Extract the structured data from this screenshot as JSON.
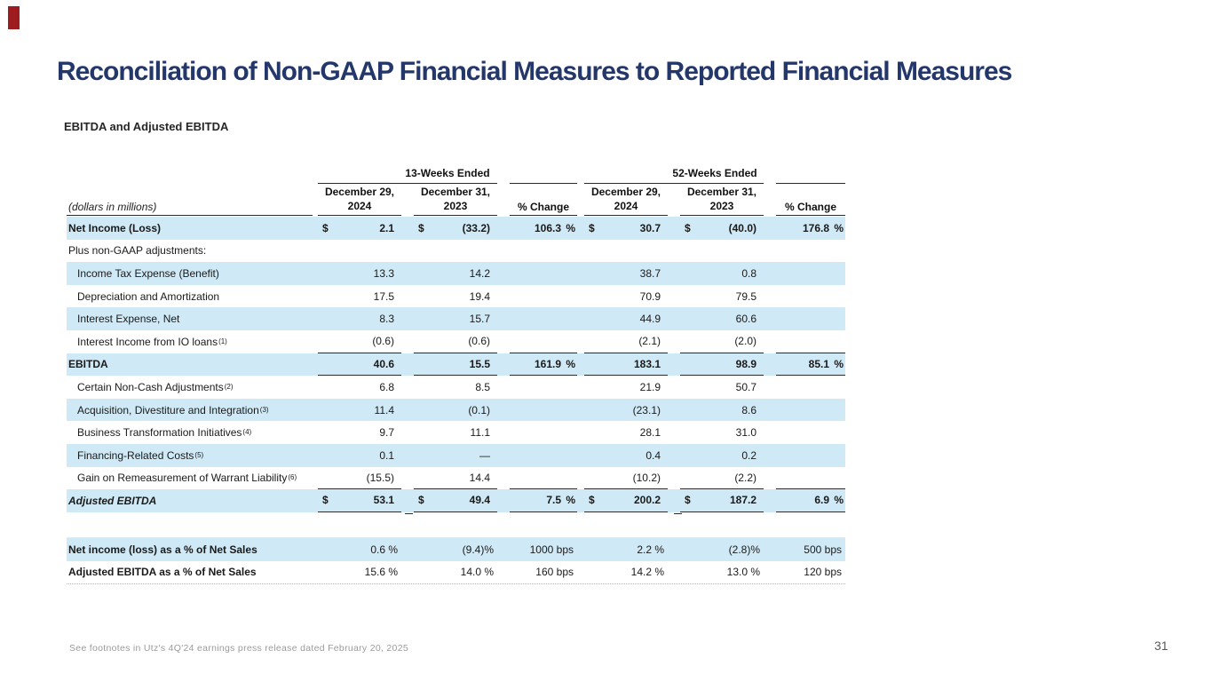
{
  "slide": {
    "title": "Reconciliation of Non-GAAP Financial Measures to Reported Financial Measures",
    "subtitle": "EBITDA and Adjusted EBITDA",
    "footnote": "See footnotes in Utz's 4Q'24 earnings press release dated February 20, 2025",
    "page_number": "31",
    "accent_color": "#9e1b20",
    "title_color": "#24376b",
    "band_color": "#cfe9f6"
  },
  "table": {
    "units_label": "(dollars in millions)",
    "groups": [
      {
        "label": "13-Weeks Ended",
        "cols": [
          {
            "l1": "December 29,",
            "l2": "2024"
          },
          {
            "l1": "December 31,",
            "l2": "2023"
          }
        ],
        "pct_label": "% Change"
      },
      {
        "label": "52-Weeks Ended",
        "cols": [
          {
            "l1": "December 29,",
            "l2": "2024"
          },
          {
            "l1": "December 31,",
            "l2": "2023"
          }
        ],
        "pct_label": "% Change"
      }
    ],
    "rows": [
      {
        "label": "Net Income (Loss)",
        "bold": true,
        "shaded": true,
        "cells": [
          {
            "c": "$",
            "v": "2.1"
          },
          {
            "c": "$",
            "v": "(33.2)"
          },
          {
            "v": "106.3",
            "s": "%"
          },
          {
            "c": "$",
            "v": "30.7"
          },
          {
            "c": "$",
            "v": "(40.0)"
          },
          {
            "v": "176.8",
            "s": "%"
          }
        ]
      },
      {
        "label": "Plus non-GAAP adjustments:",
        "cells": null
      },
      {
        "label": "Income Tax Expense (Benefit)",
        "indent": true,
        "shaded": true,
        "cells": [
          {
            "v": "13.3"
          },
          {
            "v": "14.2"
          },
          null,
          {
            "v": "38.7"
          },
          {
            "v": "0.8"
          },
          null
        ]
      },
      {
        "label": "Depreciation and Amortization",
        "indent": true,
        "cells": [
          {
            "v": "17.5"
          },
          {
            "v": "19.4"
          },
          null,
          {
            "v": "70.9"
          },
          {
            "v": "79.5"
          },
          null
        ]
      },
      {
        "label": "Interest Expense, Net",
        "indent": true,
        "shaded": true,
        "cells": [
          {
            "v": "8.3"
          },
          {
            "v": "15.7"
          },
          null,
          {
            "v": "44.9"
          },
          {
            "v": "60.6"
          },
          null
        ]
      },
      {
        "label": "Interest Income from IO loans",
        "sup": "(1)",
        "indent": true,
        "rule": true,
        "cells": [
          {
            "v": "(0.6)"
          },
          {
            "v": "(0.6)"
          },
          null,
          {
            "v": "(2.1)"
          },
          {
            "v": "(2.0)"
          },
          null
        ]
      },
      {
        "label": "EBITDA",
        "bold": true,
        "shaded": true,
        "rule": true,
        "cells": [
          {
            "v": "40.6"
          },
          {
            "v": "15.5"
          },
          {
            "v": "161.9",
            "s": "%"
          },
          {
            "v": "183.1"
          },
          {
            "v": "98.9"
          },
          {
            "v": "85.1",
            "s": "%"
          }
        ]
      },
      {
        "label": "Certain Non-Cash Adjustments",
        "sup": "(2)",
        "indent": true,
        "cells": [
          {
            "v": "6.8"
          },
          {
            "v": "8.5"
          },
          null,
          {
            "v": "21.9"
          },
          {
            "v": "50.7"
          },
          null
        ]
      },
      {
        "label": "Acquisition, Divestiture and Integration",
        "sup": "(3)",
        "indent": true,
        "shaded": true,
        "cells": [
          {
            "v": "11.4"
          },
          {
            "v": "(0.1)"
          },
          null,
          {
            "v": "(23.1)"
          },
          {
            "v": "8.6"
          },
          null
        ]
      },
      {
        "label": "Business Transformation Initiatives",
        "sup": "(4)",
        "indent": true,
        "cells": [
          {
            "v": "9.7"
          },
          {
            "v": "11.1"
          },
          null,
          {
            "v": "28.1"
          },
          {
            "v": "31.0"
          },
          null
        ]
      },
      {
        "label": "Financing-Related Costs",
        "sup": "(5)",
        "indent": true,
        "shaded": true,
        "cells": [
          {
            "v": "0.1"
          },
          {
            "v": "—"
          },
          null,
          {
            "v": "0.4"
          },
          {
            "v": "0.2"
          },
          null
        ]
      },
      {
        "label": "Gain on Remeasurement of Warrant Liability",
        "sup": "(6)",
        "indent": true,
        "rule": true,
        "cells": [
          {
            "v": "(15.5)"
          },
          {
            "v": "14.4"
          },
          null,
          {
            "v": "(10.2)"
          },
          {
            "v": "(2.2)"
          },
          null
        ]
      },
      {
        "label": "Adjusted EBITDA",
        "bold": true,
        "label_italic": true,
        "shaded": true,
        "rule": true,
        "double_rule": true,
        "cells": [
          {
            "c": "$",
            "v": "53.1"
          },
          {
            "c": "$",
            "v": "49.4"
          },
          {
            "v": "7.5",
            "s": "%"
          },
          {
            "c": "$",
            "v": "200.2"
          },
          {
            "c": "$",
            "v": "187.2"
          },
          {
            "v": "6.9",
            "s": "%"
          }
        ]
      }
    ],
    "ratio_rows": [
      {
        "label": "Net income (loss) as a % of Net Sales",
        "bold_label": true,
        "shaded": true,
        "hairtop": true,
        "ratio": true,
        "cells": [
          {
            "v": "0.6 %"
          },
          {
            "v": "(9.4)%"
          },
          {
            "v": "1000 bps"
          },
          {
            "v": "2.2 %"
          },
          {
            "v": "(2.8)%"
          },
          {
            "v": "500 bps"
          }
        ]
      },
      {
        "label": "Adjusted EBITDA as a % of Net Sales",
        "bold_label": true,
        "dotted": true,
        "ratio": true,
        "cells": [
          {
            "v": "15.6 %"
          },
          {
            "v": "14.0 %"
          },
          {
            "v": "160 bps"
          },
          {
            "v": "14.2 %"
          },
          {
            "v": "13.0 %"
          },
          {
            "v": "120 bps"
          }
        ]
      }
    ]
  }
}
